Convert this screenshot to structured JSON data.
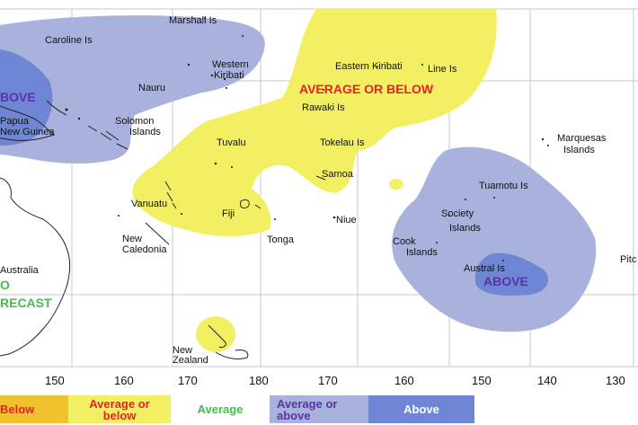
{
  "map": {
    "longitude_ticks": [
      "150",
      "160",
      "170",
      "180",
      "170",
      "160",
      "150",
      "140",
      "130"
    ],
    "places": {
      "marshall": "Marshall Is",
      "caroline": "Caroline Is",
      "western_kiribati_1": "Western",
      "western_kiribati_2": "Kiribati",
      "eastern_kiribati": "Eastern Kiribati",
      "line_is": "Line Is",
      "nauru": "Nauru",
      "png_1": "Papua",
      "png_2": "New Guinea",
      "solomon_1": "Solomon",
      "solomon_2": "Islands",
      "rawaki": "Rawaki Is",
      "tuvalu": "Tuvalu",
      "tokelau": "Tokelau Is",
      "marquesas_1": "Marquesas",
      "marquesas_2": "Islands",
      "samoa": "Samoa",
      "tuamotu": "Tuamotu Is",
      "vanuatu": "Vanuatu",
      "fiji": "Fiji",
      "niue": "Niue",
      "society_1": "Society",
      "society_2": "Islands",
      "new_caledonia_1": "New",
      "new_caledonia_2": "Caledonia",
      "tonga": "Tonga",
      "cook_1": "Cook",
      "cook_2": "Islands",
      "australia": "Australia",
      "austral": "Austral Is",
      "pitcairn": "Pitc",
      "new_zealand_1": "New",
      "new_zealand_2": "Zealand"
    },
    "region_labels": {
      "above_west": "BOVE",
      "average_or_below": "AVERAGE OR BELOW",
      "no_forecast_1": "O",
      "no_forecast_2": "RECAST",
      "above_east": "ABOVE"
    }
  },
  "legend": [
    {
      "label": "Below",
      "color": "#f2c12e",
      "text_color": "#e8202a"
    },
    {
      "label": "Average or below",
      "color": "#f2f062",
      "text_color": "#e8202a"
    },
    {
      "label": "Average",
      "color": "#ffffff",
      "text_color": "#3fbf4a"
    },
    {
      "label": "Average or above",
      "color": "#a8b2dc",
      "text_color": "#5a32a8"
    },
    {
      "label": "Above",
      "color": "#6f86d4",
      "text_color": "#ffffff"
    }
  ],
  "colors": {
    "above": "#6f86d4",
    "average_or_above": "#a8b2dc",
    "average_or_below": "#f2f062",
    "no_forecast": "#3fbf4a",
    "below_label": "#e8202a",
    "above_label": "#5a32a8"
  }
}
